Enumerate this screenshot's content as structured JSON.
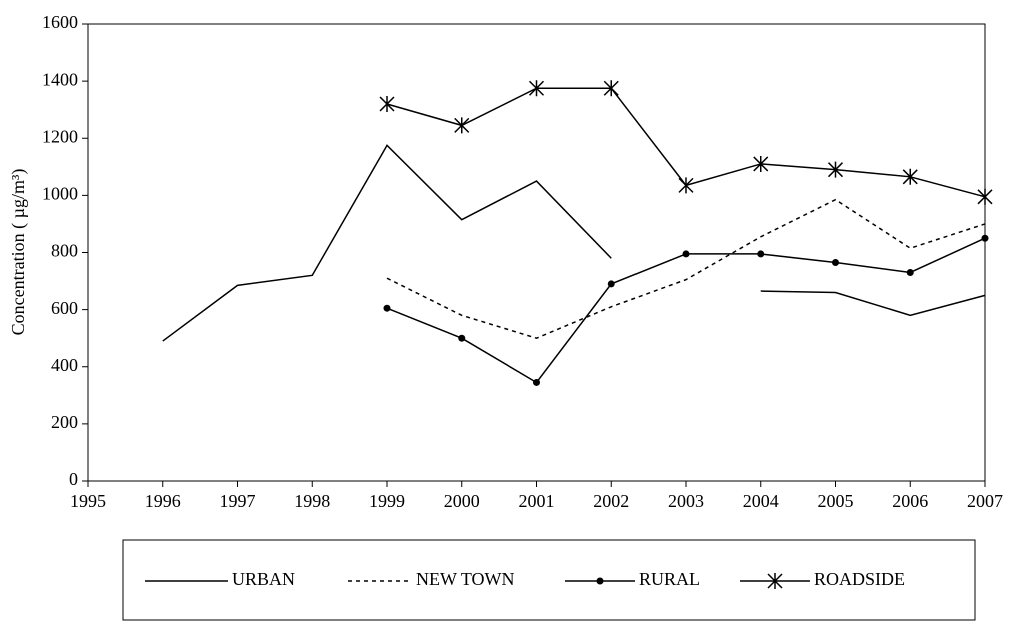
{
  "chart_data": {
    "type": "line",
    "y_label": "Concentration ( µg/m³)",
    "x": [
      1996,
      1997,
      1998,
      1999,
      2000,
      2001,
      2002,
      2003,
      2004,
      2005,
      2006,
      2007
    ],
    "series": [
      {
        "name": "URBAN",
        "color": "#000000",
        "dash": "solid",
        "marker": "none",
        "values": [
          490,
          685,
          720,
          1175,
          915,
          1050,
          780,
          null,
          665,
          660,
          580,
          650
        ]
      },
      {
        "name": "NEW TOWN",
        "color": "#000000",
        "dash": "dashed",
        "marker": "none",
        "values": [
          null,
          null,
          null,
          710,
          580,
          500,
          610,
          705,
          855,
          985,
          815,
          900
        ]
      },
      {
        "name": "RURAL",
        "color": "#000000",
        "dash": "solid",
        "marker": "dot",
        "values": [
          null,
          null,
          null,
          605,
          500,
          345,
          690,
          795,
          795,
          765,
          730,
          850
        ]
      },
      {
        "name": "ROADSIDE",
        "color": "#000000",
        "dash": "solid",
        "marker": "asterisk",
        "values": [
          null,
          null,
          null,
          1320,
          1245,
          1375,
          1375,
          1035,
          1110,
          1090,
          1065,
          995
        ]
      }
    ],
    "xlim": [
      1995,
      2007
    ],
    "xticks": [
      1995,
      1996,
      1997,
      1998,
      1999,
      2000,
      2001,
      2002,
      2003,
      2004,
      2005,
      2006,
      2007
    ],
    "ylim": [
      0,
      1600
    ],
    "yticks": [
      0,
      200,
      400,
      600,
      800,
      1000,
      1200,
      1400,
      1600
    ],
    "grid": false,
    "legend": "bottom"
  }
}
